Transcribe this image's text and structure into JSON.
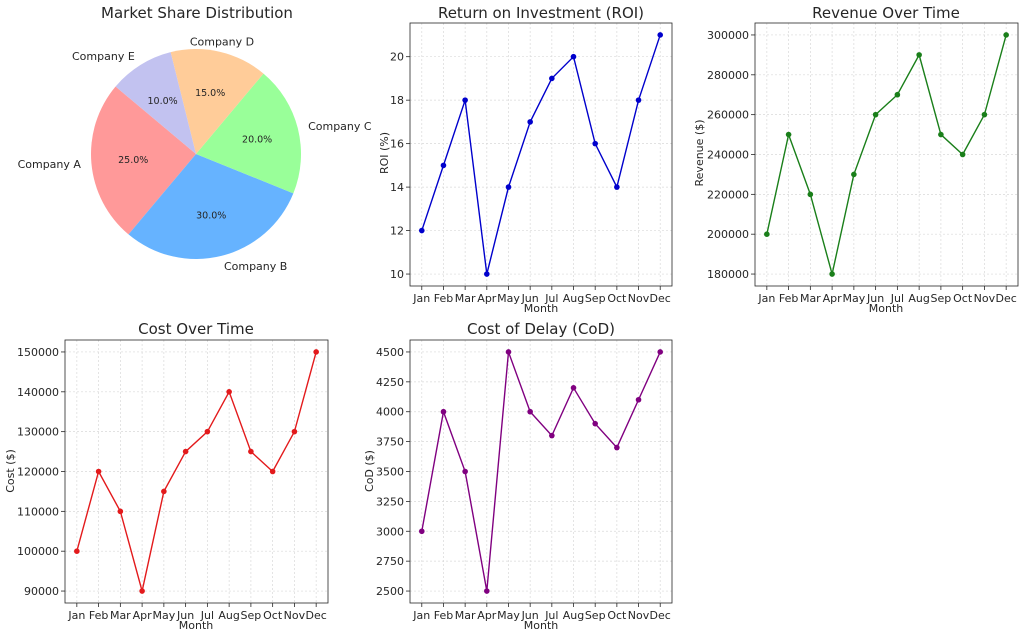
{
  "chart_data": [
    {
      "type": "pie",
      "title": "Market Share Distribution",
      "categories": [
        "Company A",
        "Company B",
        "Company C",
        "Company D",
        "Company E"
      ],
      "values": [
        25.0,
        30.0,
        20.0,
        15.0,
        10.0
      ],
      "value_labels": [
        "25.0%",
        "30.0%",
        "20.0%",
        "15.0%",
        "10.0%"
      ],
      "colors": [
        "#ff9999",
        "#66b3ff",
        "#99ff99",
        "#ffcc99",
        "#c2c2f0"
      ]
    },
    {
      "type": "line",
      "title": "Return on Investment (ROI)",
      "xlabel": "Month",
      "ylabel": "ROI (%)",
      "categories": [
        "Jan",
        "Feb",
        "Mar",
        "Apr",
        "May",
        "Jun",
        "Jul",
        "Aug",
        "Sep",
        "Oct",
        "Nov",
        "Dec"
      ],
      "values": [
        12,
        15,
        18,
        10,
        14,
        17,
        19,
        20,
        16,
        14,
        18,
        21
      ],
      "yticks": [
        "10",
        "12",
        "14",
        "16",
        "18",
        "20"
      ],
      "ylim": [
        9.45,
        21.55
      ],
      "color": "#0000cc",
      "grid": true
    },
    {
      "type": "line",
      "title": "Revenue Over Time",
      "xlabel": "Month",
      "ylabel": "Revenue ($)",
      "categories": [
        "Jan",
        "Feb",
        "Mar",
        "Apr",
        "May",
        "Jun",
        "Jul",
        "Aug",
        "Sep",
        "Oct",
        "Nov",
        "Dec"
      ],
      "values": [
        200000,
        250000,
        220000,
        180000,
        230000,
        260000,
        270000,
        290000,
        250000,
        240000,
        260000,
        300000
      ],
      "yticks": [
        "180000",
        "200000",
        "220000",
        "240000",
        "260000",
        "280000",
        "300000"
      ],
      "ylim": [
        174000,
        306000
      ],
      "color": "#1a7f1a",
      "grid": true
    },
    {
      "type": "line",
      "title": "Cost Over Time",
      "xlabel": "Month",
      "ylabel": "Cost ($)",
      "categories": [
        "Jan",
        "Feb",
        "Mar",
        "Apr",
        "May",
        "Jun",
        "Jul",
        "Aug",
        "Sep",
        "Oct",
        "Nov",
        "Dec"
      ],
      "values": [
        100000,
        120000,
        110000,
        90000,
        115000,
        125000,
        130000,
        140000,
        125000,
        120000,
        130000,
        150000
      ],
      "yticks": [
        "90000",
        "100000",
        "110000",
        "120000",
        "130000",
        "140000",
        "150000"
      ],
      "ylim": [
        87000,
        153000
      ],
      "color": "#e31a1c",
      "grid": true
    },
    {
      "type": "line",
      "title": "Cost of Delay (CoD)",
      "xlabel": "Month",
      "ylabel": "CoD ($)",
      "categories": [
        "Jan",
        "Feb",
        "Mar",
        "Apr",
        "May",
        "Jun",
        "Jul",
        "Aug",
        "Sep",
        "Oct",
        "Nov",
        "Dec"
      ],
      "values": [
        3000,
        4000,
        3500,
        2500,
        4500,
        4000,
        3800,
        4200,
        3900,
        3700,
        4100,
        4500
      ],
      "yticks": [
        "2500",
        "2750",
        "3000",
        "3250",
        "3500",
        "3750",
        "4000",
        "4250",
        "4500"
      ],
      "ylim": [
        2400,
        4600
      ],
      "color": "#800080",
      "grid": true
    }
  ]
}
